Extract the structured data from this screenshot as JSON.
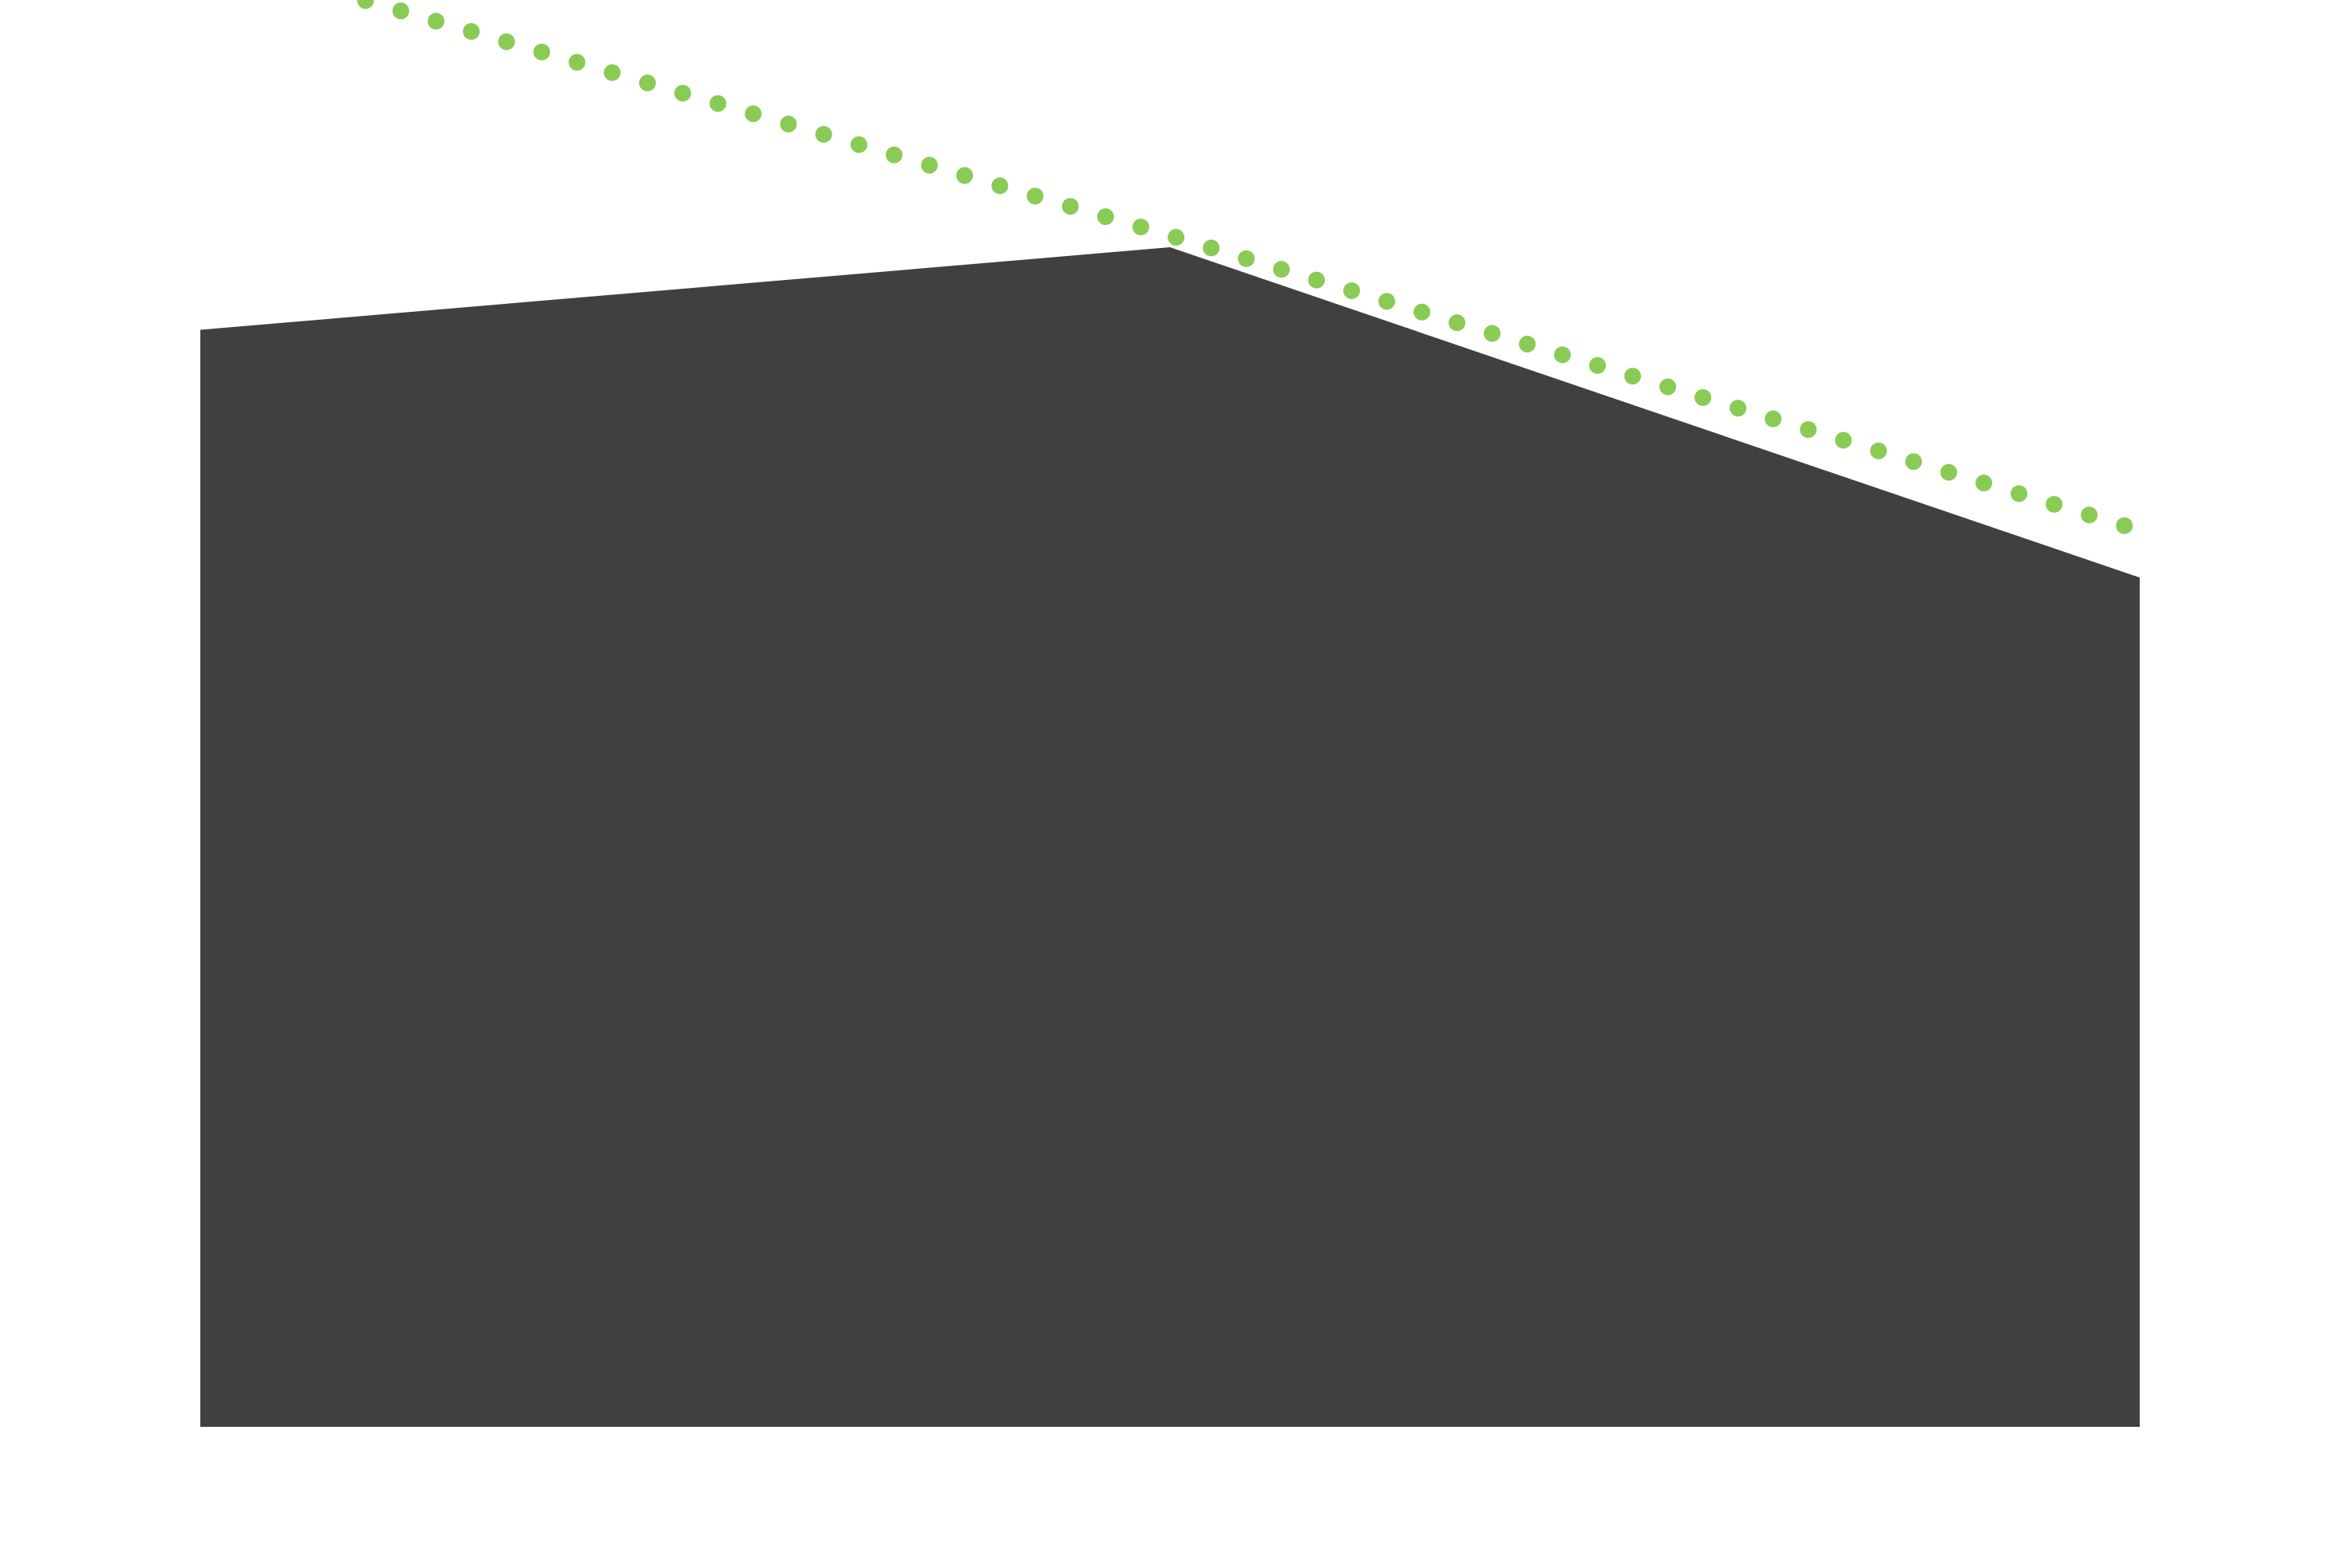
{
  "chart_data": {
    "type": "area",
    "title": "",
    "xlabel": "",
    "ylabel": "",
    "x": [
      0,
      1,
      2
    ],
    "xlim": [
      0,
      2
    ],
    "ylim": [
      0,
      100
    ],
    "grid": false,
    "series": [
      {
        "kind": "area",
        "values": [
          93,
          100,
          72
        ],
        "color": "#404040"
      },
      {
        "kind": "dotted-line",
        "values": [
          125,
          101,
          76
        ],
        "color": "#8ACB55"
      }
    ]
  }
}
